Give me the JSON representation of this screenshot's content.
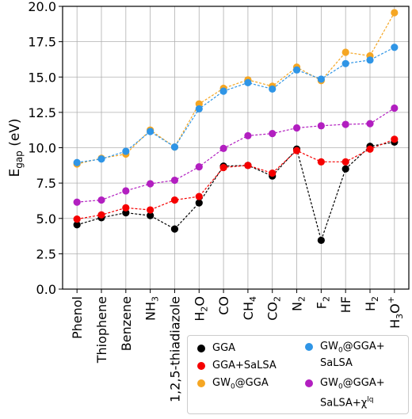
{
  "chart_data": {
    "type": "line",
    "title": "",
    "xlabel": "",
    "ylabel": "E",
    "ylabel_sub": "gap",
    "ylabel_unit": " (eV)",
    "ylim": [
      0.0,
      20.0
    ],
    "yticks": [
      "0.0",
      "2.5",
      "5.0",
      "7.5",
      "10.0",
      "12.5",
      "15.0",
      "17.5",
      "20.0"
    ],
    "categories": [
      {
        "base": "Phenol",
        "sub": "",
        "sup": ""
      },
      {
        "base": "Thiophene",
        "sub": "",
        "sup": ""
      },
      {
        "base": "Benzene",
        "sub": "",
        "sup": ""
      },
      {
        "base": "NH",
        "sub": "3",
        "sup": ""
      },
      {
        "base": "1,2,5-thiadiazole",
        "sub": "",
        "sup": ""
      },
      {
        "base": "H",
        "sub": "2",
        "sup": "",
        "tail": "O"
      },
      {
        "base": "CO",
        "sub": "",
        "sup": ""
      },
      {
        "base": "CH",
        "sub": "4",
        "sup": ""
      },
      {
        "base": "CO",
        "sub": "2",
        "sup": ""
      },
      {
        "base": "N",
        "sub": "2",
        "sup": ""
      },
      {
        "base": "F",
        "sub": "2",
        "sup": ""
      },
      {
        "base": "HF",
        "sub": "",
        "sup": ""
      },
      {
        "base": "H",
        "sub": "2",
        "sup": ""
      },
      {
        "base": "H",
        "sub": "3",
        "sup": "+",
        "tail": "O"
      }
    ],
    "series": [
      {
        "key": "gga",
        "color": "#000000",
        "values": [
          4.55,
          5.05,
          5.4,
          5.2,
          4.25,
          6.1,
          8.7,
          8.75,
          8.0,
          9.9,
          3.45,
          8.5,
          10.1,
          10.4
        ]
      },
      {
        "key": "gga_salsa",
        "color": "#f50000",
        "values": [
          4.95,
          5.25,
          5.75,
          5.6,
          6.3,
          6.55,
          8.6,
          8.75,
          8.2,
          9.8,
          9.0,
          9.0,
          9.9,
          10.6
        ]
      },
      {
        "key": "gw0_gga",
        "color": "#f5a623",
        "values": [
          8.85,
          9.25,
          9.55,
          11.25,
          10.05,
          13.1,
          14.2,
          14.8,
          14.35,
          15.7,
          14.75,
          16.75,
          16.5,
          19.55
        ]
      },
      {
        "key": "gw0_gga_salsa",
        "color": "#2f95e6",
        "values": [
          8.95,
          9.2,
          9.75,
          11.15,
          10.05,
          12.75,
          14.0,
          14.6,
          14.15,
          15.5,
          14.85,
          15.95,
          16.2,
          17.1
        ]
      },
      {
        "key": "gw0_gga_salsa_chi",
        "color": "#b21fc0",
        "values": [
          6.15,
          6.3,
          6.95,
          7.45,
          7.7,
          8.65,
          9.95,
          10.85,
          11.0,
          11.4,
          11.55,
          11.65,
          11.7,
          12.8
        ]
      }
    ]
  },
  "legend": {
    "gga": {
      "color": "#000000",
      "line1": "GGA"
    },
    "gga_salsa": {
      "color": "#f50000",
      "line1": "GGA+SaLSA"
    },
    "gw0_gga": {
      "color": "#f5a623",
      "pre": "GW",
      "sub": "0",
      "post": "@GGA"
    },
    "gw0_gga_salsa": {
      "color": "#2f95e6",
      "pre": "GW",
      "sub": "0",
      "post": "@GGA+",
      "line2": "SaLSA"
    },
    "gw0_gga_salsa_chi": {
      "color": "#b21fc0",
      "pre": "GW",
      "sub": "0",
      "post": "@GGA+",
      "line2": "SaLSA+χ",
      "line2_sup": "lq"
    }
  }
}
